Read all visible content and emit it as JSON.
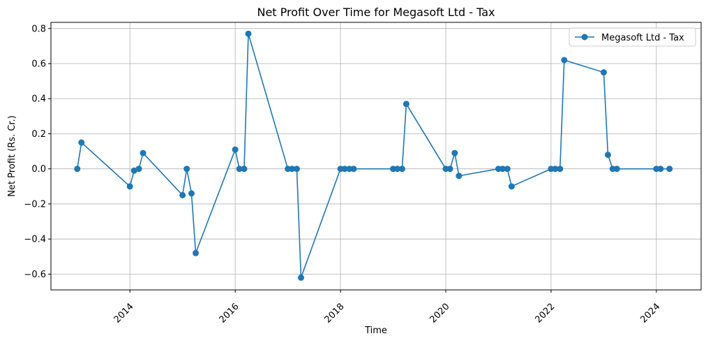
{
  "chart_data": {
    "type": "line",
    "title": "Net Profit Over Time for Megasoft Ltd - Tax",
    "xlabel": "Time",
    "ylabel": "Net Profit (Rs. Cr.)",
    "xlim": [
      2012.5,
      2024.85
    ],
    "ylim": [
      -0.69,
      0.835
    ],
    "grid": true,
    "legend_position": "top-right",
    "x_ticks": [
      2014,
      2016,
      2018,
      2020,
      2022,
      2024
    ],
    "x_tick_labels": [
      "2014",
      "2016",
      "2018",
      "2020",
      "2022",
      "2024"
    ],
    "y_ticks": [
      -0.6,
      -0.4,
      -0.2,
      0.0,
      0.2,
      0.4,
      0.6,
      0.8
    ],
    "y_tick_labels": [
      "−0.6",
      "−0.4",
      "−0.2",
      "0.0",
      "0.2",
      "0.4",
      "0.6",
      "0.8"
    ],
    "series": [
      {
        "name": "Megasoft Ltd - Tax",
        "color": "#1f77b4",
        "marker": "circle",
        "x": [
          2013.0,
          2013.08,
          2014.0,
          2014.08,
          2014.17,
          2014.25,
          2015.0,
          2015.08,
          2015.17,
          2015.25,
          2016.0,
          2016.08,
          2016.17,
          2016.25,
          2017.0,
          2017.08,
          2017.17,
          2017.25,
          2018.0,
          2018.08,
          2018.17,
          2018.25,
          2019.0,
          2019.08,
          2019.17,
          2019.25,
          2020.0,
          2020.08,
          2020.17,
          2020.25,
          2021.0,
          2021.08,
          2021.17,
          2021.25,
          2022.0,
          2022.08,
          2022.17,
          2022.25,
          2023.0,
          2023.08,
          2023.17,
          2023.25,
          2024.0,
          2024.08,
          2024.25
        ],
        "y": [
          0.0,
          0.15,
          -0.1,
          -0.01,
          0.0,
          0.09,
          -0.15,
          0.0,
          -0.14,
          -0.48,
          0.11,
          0.0,
          0.0,
          0.77,
          0.0,
          0.0,
          0.0,
          -0.62,
          0.0,
          0.0,
          0.0,
          0.0,
          0.0,
          0.0,
          0.0,
          0.37,
          0.0,
          0.0,
          0.09,
          -0.04,
          0.0,
          0.0,
          0.0,
          -0.1,
          0.0,
          0.0,
          0.0,
          0.62,
          0.55,
          0.08,
          0.0,
          0.0,
          0.0,
          0.0,
          0.0
        ]
      }
    ]
  }
}
